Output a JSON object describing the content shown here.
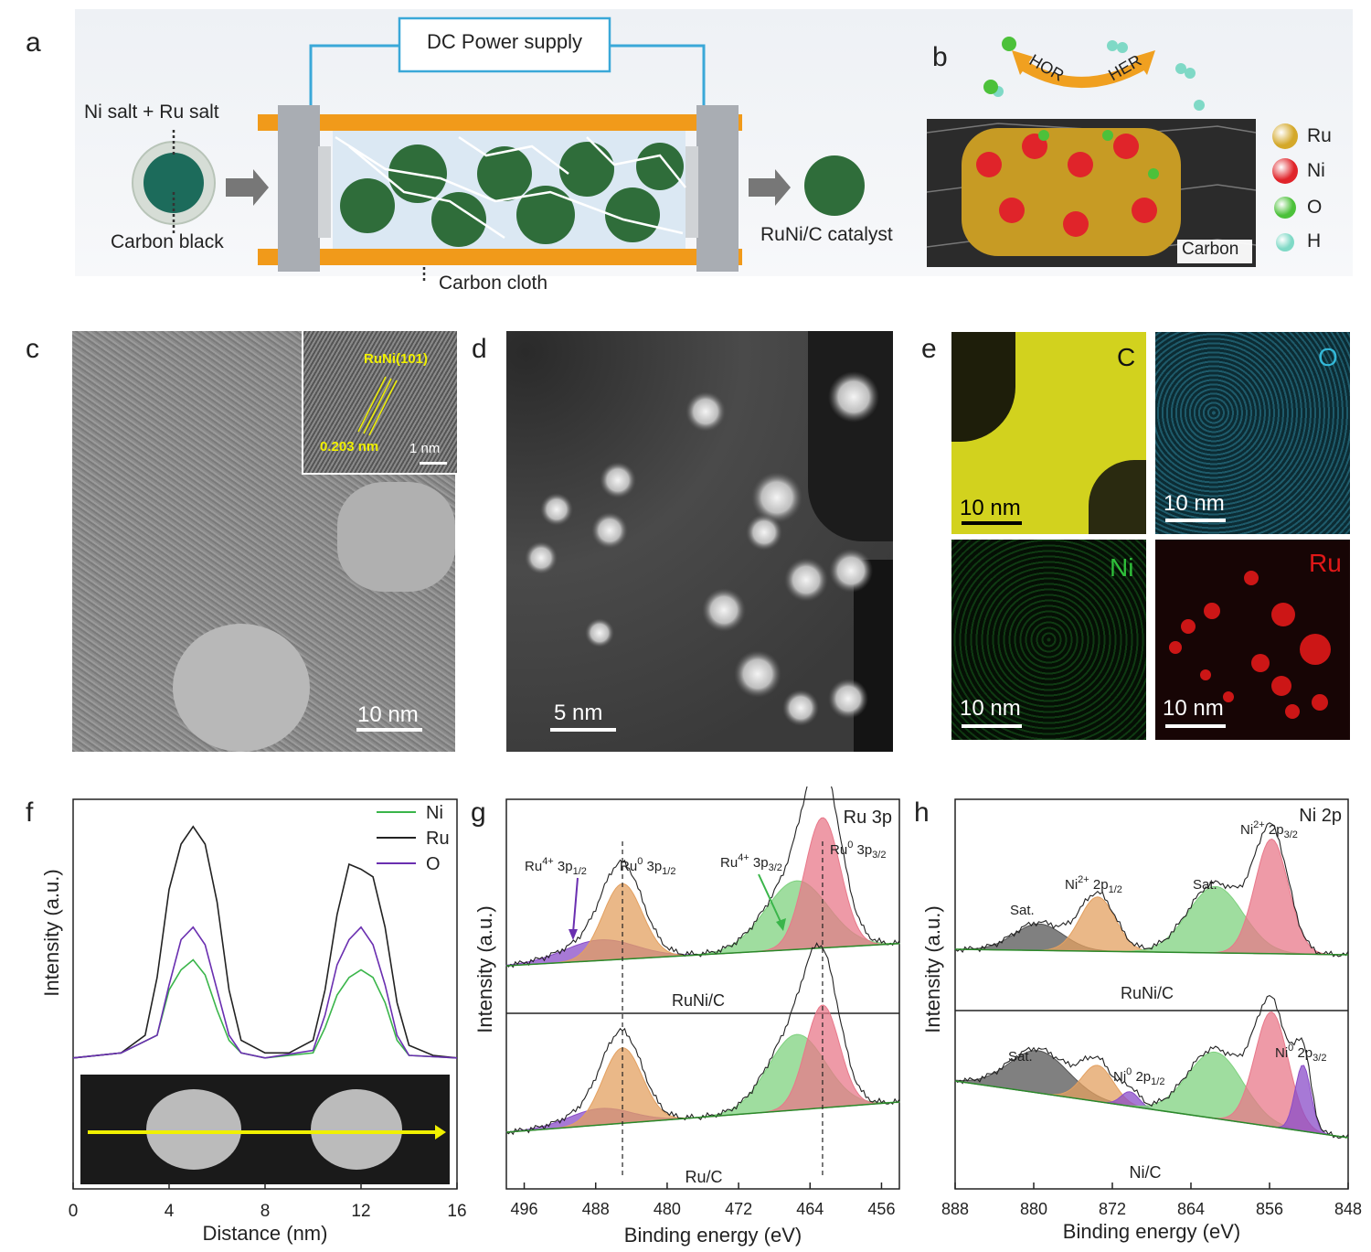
{
  "panel_labels": {
    "a": "a",
    "b": "b",
    "c": "c",
    "d": "d",
    "e": "e",
    "f": "f",
    "g": "g",
    "h": "h"
  },
  "panel_a": {
    "power_supply": "DC Power supply",
    "precursor": "Ni salt + Ru salt",
    "support": "Carbon black",
    "electrode": "Carbon cloth",
    "product": "RuNi/C catalyst"
  },
  "panel_b": {
    "hor": "HOR",
    "her": "HER",
    "substrate": "Carbon",
    "legend": [
      {
        "label": "Ru",
        "color": "#d4a82a"
      },
      {
        "label": "Ni",
        "color": "#e0242a"
      },
      {
        "label": "O",
        "color": "#4cc13a"
      },
      {
        "label": "H",
        "color": "#7fd9c6"
      }
    ]
  },
  "panel_c": {
    "scale": "10 nm",
    "inset_label": "RuNi(101)",
    "inset_spacing": "0.203 nm",
    "inset_scale": "1 nm"
  },
  "panel_d": {
    "scale": "5 nm"
  },
  "panel_e": {
    "maps": [
      {
        "element": "C",
        "scale": "10 nm",
        "color": "#d8d820"
      },
      {
        "element": "O",
        "scale": "10 nm",
        "color": "#33b8d8"
      },
      {
        "element": "Ni",
        "scale": "10 nm",
        "color": "#2fbf3a"
      },
      {
        "element": "Ru",
        "scale": "10 nm",
        "color": "#e01818"
      }
    ]
  },
  "chart_data": [
    {
      "panel": "f",
      "type": "line",
      "xlabel": "Distance (nm)",
      "ylabel": "Intensity (a.u.)",
      "xlim": [
        0,
        16
      ],
      "xticks": [
        "0",
        "4",
        "8",
        "12",
        "16"
      ],
      "series": [
        {
          "name": "Ni",
          "color": "#3ab54a",
          "x": [
            0,
            2,
            3.5,
            4,
            4.5,
            5,
            5.5,
            6,
            6.5,
            7,
            8,
            10,
            10.5,
            11,
            11.5,
            12,
            12.5,
            13,
            13.5,
            14,
            16
          ],
          "y": [
            0.03,
            0.05,
            0.12,
            0.3,
            0.38,
            0.42,
            0.36,
            0.22,
            0.1,
            0.05,
            0.03,
            0.05,
            0.15,
            0.28,
            0.35,
            0.38,
            0.35,
            0.25,
            0.1,
            0.04,
            0.03
          ]
        },
        {
          "name": "Ru",
          "color": "#222222",
          "x": [
            0,
            2,
            3,
            3.5,
            4,
            4.5,
            5,
            5.5,
            6,
            6.5,
            7,
            8,
            9,
            10,
            10.5,
            11,
            11.5,
            12,
            12.5,
            13,
            13.5,
            14,
            15,
            16
          ],
          "y": [
            0.03,
            0.05,
            0.12,
            0.35,
            0.7,
            0.88,
            0.95,
            0.88,
            0.65,
            0.3,
            0.1,
            0.05,
            0.05,
            0.1,
            0.3,
            0.6,
            0.8,
            0.78,
            0.75,
            0.55,
            0.25,
            0.08,
            0.04,
            0.03
          ]
        },
        {
          "name": "O",
          "color": "#6a2fb0",
          "x": [
            0,
            2,
            3.5,
            4,
            4.5,
            5,
            5.5,
            6,
            6.5,
            7,
            8,
            10,
            10.5,
            11,
            11.5,
            12,
            12.5,
            13,
            13.5,
            14,
            16
          ],
          "y": [
            0.03,
            0.05,
            0.12,
            0.32,
            0.5,
            0.55,
            0.48,
            0.3,
            0.12,
            0.05,
            0.03,
            0.06,
            0.2,
            0.4,
            0.5,
            0.55,
            0.48,
            0.32,
            0.12,
            0.04,
            0.03
          ]
        }
      ]
    },
    {
      "panel": "g",
      "type": "line",
      "xlabel": "Binding energy (eV)",
      "ylabel": "Intensity (a.u.)",
      "title": "Ru 3p",
      "xlim": [
        498,
        454
      ],
      "xticks": [
        "496",
        "488",
        "480",
        "472",
        "464",
        "456"
      ],
      "samples": [
        "RuNi/C",
        "Ru/C"
      ],
      "reference_lines": [
        485.0,
        462.6
      ],
      "peaks_RuNiC": [
        {
          "label": "Ru⁴⁺ 3p₁/₂",
          "center": 487.5,
          "height": 0.15,
          "width": 4.0,
          "color": "#8a4cc8"
        },
        {
          "label": "Ru⁰ 3p₁/₂",
          "center": 485.0,
          "height": 0.55,
          "width": 2.2,
          "color": "#e3a060"
        },
        {
          "label": "Ru⁴⁺ 3p₃/₂",
          "center": 465.5,
          "height": 0.5,
          "width": 3.5,
          "color": "#7fd27f"
        },
        {
          "label": "Ru⁰ 3p₃/₂",
          "center": 462.6,
          "height": 0.95,
          "width": 2.0,
          "color": "#e8788a"
        }
      ],
      "peaks_RuC": [
        {
          "label": "Ru⁴⁺ 3p₁/₂",
          "center": 487.5,
          "height": 0.12,
          "width": 3.5,
          "color": "#8a4cc8"
        },
        {
          "label": "Ru⁰ 3p₁/₂",
          "center": 485.0,
          "height": 0.55,
          "width": 2.2,
          "color": "#e3a060"
        },
        {
          "label": "Ru⁴⁺ 3p₃/₂",
          "center": 465.5,
          "height": 0.55,
          "width": 3.2,
          "color": "#7fd27f"
        },
        {
          "label": "Ru⁰ 3p₃/₂",
          "center": 462.6,
          "height": 0.75,
          "width": 1.9,
          "color": "#e8788a"
        }
      ],
      "annotations": {
        "ru4_half": {
          "main": "Ru",
          "sup": "4+",
          "rest": " 3p",
          "sub": "1/2"
        },
        "ru0_half": {
          "main": "Ru",
          "sup": "0",
          "rest": " 3p",
          "sub": "1/2"
        },
        "ru4_3half": {
          "main": "Ru",
          "sup": "4+",
          "rest": " 3p",
          "sub": "3/2"
        },
        "ru0_3half": {
          "main": "Ru",
          "sup": "0",
          "rest": " 3p",
          "sub": "3/2"
        }
      }
    },
    {
      "panel": "h",
      "type": "line",
      "xlabel": "Binding energy (eV)",
      "ylabel": "Intensity (a.u.)",
      "title": "Ni 2p",
      "xlim": [
        888,
        848
      ],
      "xticks": [
        "888",
        "880",
        "872",
        "864",
        "856",
        "848"
      ],
      "samples": [
        "RuNi/C",
        "Ni/C"
      ],
      "peaks_RuNiC": [
        {
          "label": "Sat.",
          "center": 879.5,
          "height": 0.22,
          "width": 2.5,
          "color": "#555555"
        },
        {
          "label": "Ni²⁺ 2p₁/₂",
          "center": 873.5,
          "height": 0.45,
          "width": 1.8,
          "color": "#e3a060"
        },
        {
          "label": "Sat.",
          "center": 861.5,
          "height": 0.55,
          "width": 2.8,
          "color": "#7fd27f"
        },
        {
          "label": "Ni²⁺ 2p₃/₂",
          "center": 855.8,
          "height": 0.95,
          "width": 1.7,
          "color": "#e8788a"
        }
      ],
      "peaks_NiC": [
        {
          "label": "Sat.",
          "center": 879.5,
          "height": 0.35,
          "width": 3.0,
          "color": "#555555"
        },
        {
          "label": "Ni²⁺ 2p₁/₂",
          "center": 873.5,
          "height": 0.3,
          "width": 1.6,
          "color": "#e3a060"
        },
        {
          "label": "Ni⁰ 2p₁/₂",
          "center": 870.2,
          "height": 0.12,
          "width": 0.9,
          "color": "#8a4cc8"
        },
        {
          "label": "Sat.",
          "center": 861.5,
          "height": 0.55,
          "width": 2.8,
          "color": "#7fd27f"
        },
        {
          "label": "Ni²⁺ 2p₃/₂",
          "center": 855.8,
          "height": 0.95,
          "width": 1.7,
          "color": "#e8788a"
        },
        {
          "label": "Ni⁰ 2p₃/₂",
          "center": 852.6,
          "height": 0.55,
          "width": 0.8,
          "color": "#8a4cc8"
        }
      ],
      "annotations": {
        "sat": "Sat.",
        "ni2_half": {
          "main": "Ni",
          "sup": "2+",
          "rest": " 2p",
          "sub": "1/2"
        },
        "ni2_3half": {
          "main": "Ni",
          "sup": "2+",
          "rest": " 2p",
          "sub": "3/2"
        },
        "ni0_half": {
          "main": "Ni",
          "sup": "0",
          "rest": " 2p",
          "sub": "1/2"
        },
        "ni0_3half": {
          "main": "Ni",
          "sup": "0",
          "rest": " 2p",
          "sub": "3/2"
        }
      }
    }
  ]
}
